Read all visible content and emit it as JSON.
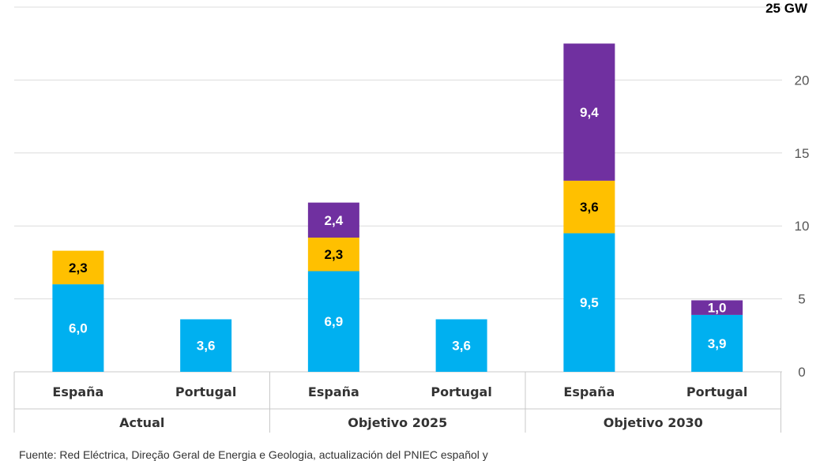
{
  "chart_data": {
    "type": "bar",
    "stacked": true,
    "unit_label": "25 GW",
    "ylim": [
      0,
      25
    ],
    "yticks": [
      "0",
      "5",
      "10",
      "15",
      "20"
    ],
    "grid": true,
    "groups": [
      {
        "label": "Actual",
        "categories": [
          "España",
          "Portugal"
        ]
      },
      {
        "label": "Objetivo 2025",
        "categories": [
          "España",
          "Portugal"
        ]
      },
      {
        "label": "Objetivo 2030",
        "categories": [
          "España",
          "Portugal"
        ]
      }
    ],
    "series": [
      {
        "color": "#00B0F0",
        "text_color": "#FFFFFF",
        "values": [
          6.0,
          3.6,
          6.9,
          3.6,
          9.5,
          3.9
        ],
        "labels": [
          "6,0",
          "3,6",
          "6,9",
          "3,6",
          "9,5",
          "3,9"
        ]
      },
      {
        "color": "#FFC000",
        "text_color": "#000000",
        "values": [
          2.3,
          null,
          2.3,
          null,
          3.6,
          null
        ],
        "labels": [
          "2,3",
          null,
          "2,3",
          null,
          "3,6",
          null
        ]
      },
      {
        "color": "#7030A0",
        "text_color": "#FFFFFF",
        "values": [
          null,
          null,
          2.4,
          null,
          9.4,
          1.0
        ],
        "labels": [
          null,
          null,
          "2,4",
          null,
          "9,4",
          "1,0"
        ]
      }
    ]
  },
  "footnote": "Fuente: Red Eléctrica, Direção Geral de Energia e Geologia, actualización del PNIEC español y"
}
